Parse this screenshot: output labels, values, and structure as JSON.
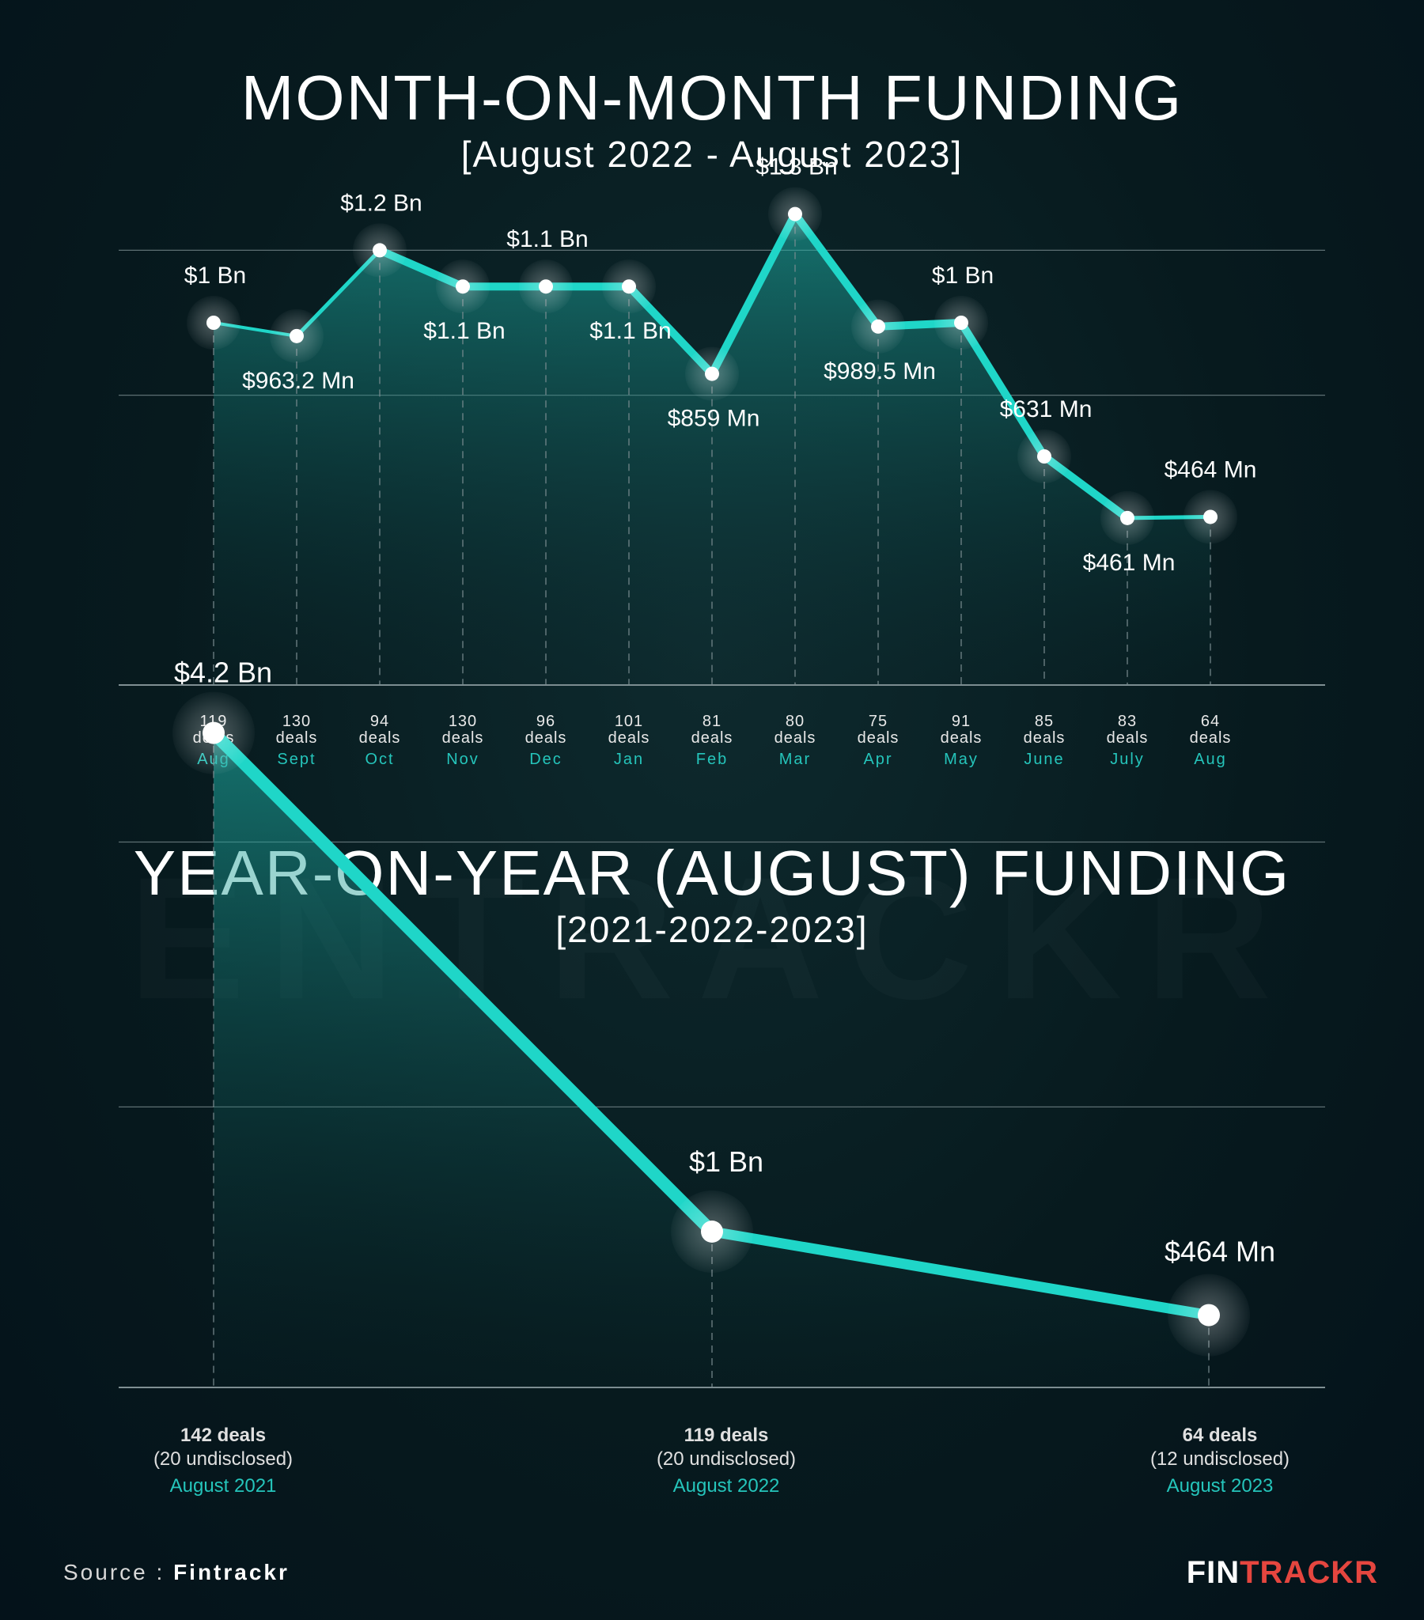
{
  "title1": "MONTH-ON-MONTH FUNDING",
  "subtitle1": "[August 2022 - August 2023]",
  "title2": "YEAR-ON-YEAR (AUGUST) FUNDING",
  "subtitle2": "[2021-2022-2023]",
  "watermark": "ENTRACKR",
  "source_prefix": "Source : ",
  "source_name": "Fintrackr",
  "logo_part1": "FIN",
  "logo_part2": "TRACKR",
  "colors": {
    "accent": "#25c5bb",
    "line": "#1fd6c8",
    "logo_red": "#e5463f"
  },
  "chart_data": [
    {
      "type": "line",
      "title": "MONTH-ON-MONTH FUNDING",
      "subtitle": "[August 2022 - August 2023]",
      "categories": [
        "Aug",
        "Sept",
        "Oct",
        "Nov",
        "Dec",
        "Jan",
        "Feb",
        "Mar",
        "Apr",
        "May",
        "June",
        "July",
        "Aug"
      ],
      "values": [
        1000,
        963.2,
        1200,
        1100,
        1100,
        1100,
        859,
        1300,
        989.5,
        1000,
        631,
        461,
        464
      ],
      "value_unit": "$ Mn",
      "labels": [
        "$1 Bn",
        "$963.2 Mn",
        "$1.2 Bn",
        "$1.1 Bn",
        "$1.1 Bn",
        "$1.1 Bn",
        "$859 Mn",
        "$1.3 Bn",
        "$989.5 Mn",
        "$1 Bn",
        "$631 Mn",
        "$461 Mn",
        "$464 Mn"
      ],
      "label_pos": [
        "above",
        "below",
        "above",
        "below",
        "above",
        "below",
        "below",
        "above",
        "below",
        "above",
        "above",
        "below",
        "above"
      ],
      "deals": [
        "119",
        "130",
        "94",
        "130",
        "96",
        "101",
        "81",
        "80",
        "75",
        "91",
        "85",
        "83",
        "64"
      ],
      "deals_word": "deals",
      "ylim": [
        0,
        1400
      ]
    },
    {
      "type": "line",
      "title": "YEAR-ON-YEAR (AUGUST) FUNDING",
      "subtitle": "[2021-2022-2023]",
      "categories": [
        "August 2021",
        "August 2022",
        "August 2023"
      ],
      "values": [
        4200,
        1000,
        464
      ],
      "value_unit": "$ Mn",
      "labels": [
        "$4.2 Bn",
        "$1 Bn",
        "$464 Mn"
      ],
      "deals": [
        "142 deals",
        "119 deals",
        "64 deals"
      ],
      "undisclosed": [
        "(20 undisclosed)",
        "(20 undisclosed)",
        "(12 undisclosed)"
      ],
      "ylim": [
        0,
        4400
      ]
    }
  ]
}
